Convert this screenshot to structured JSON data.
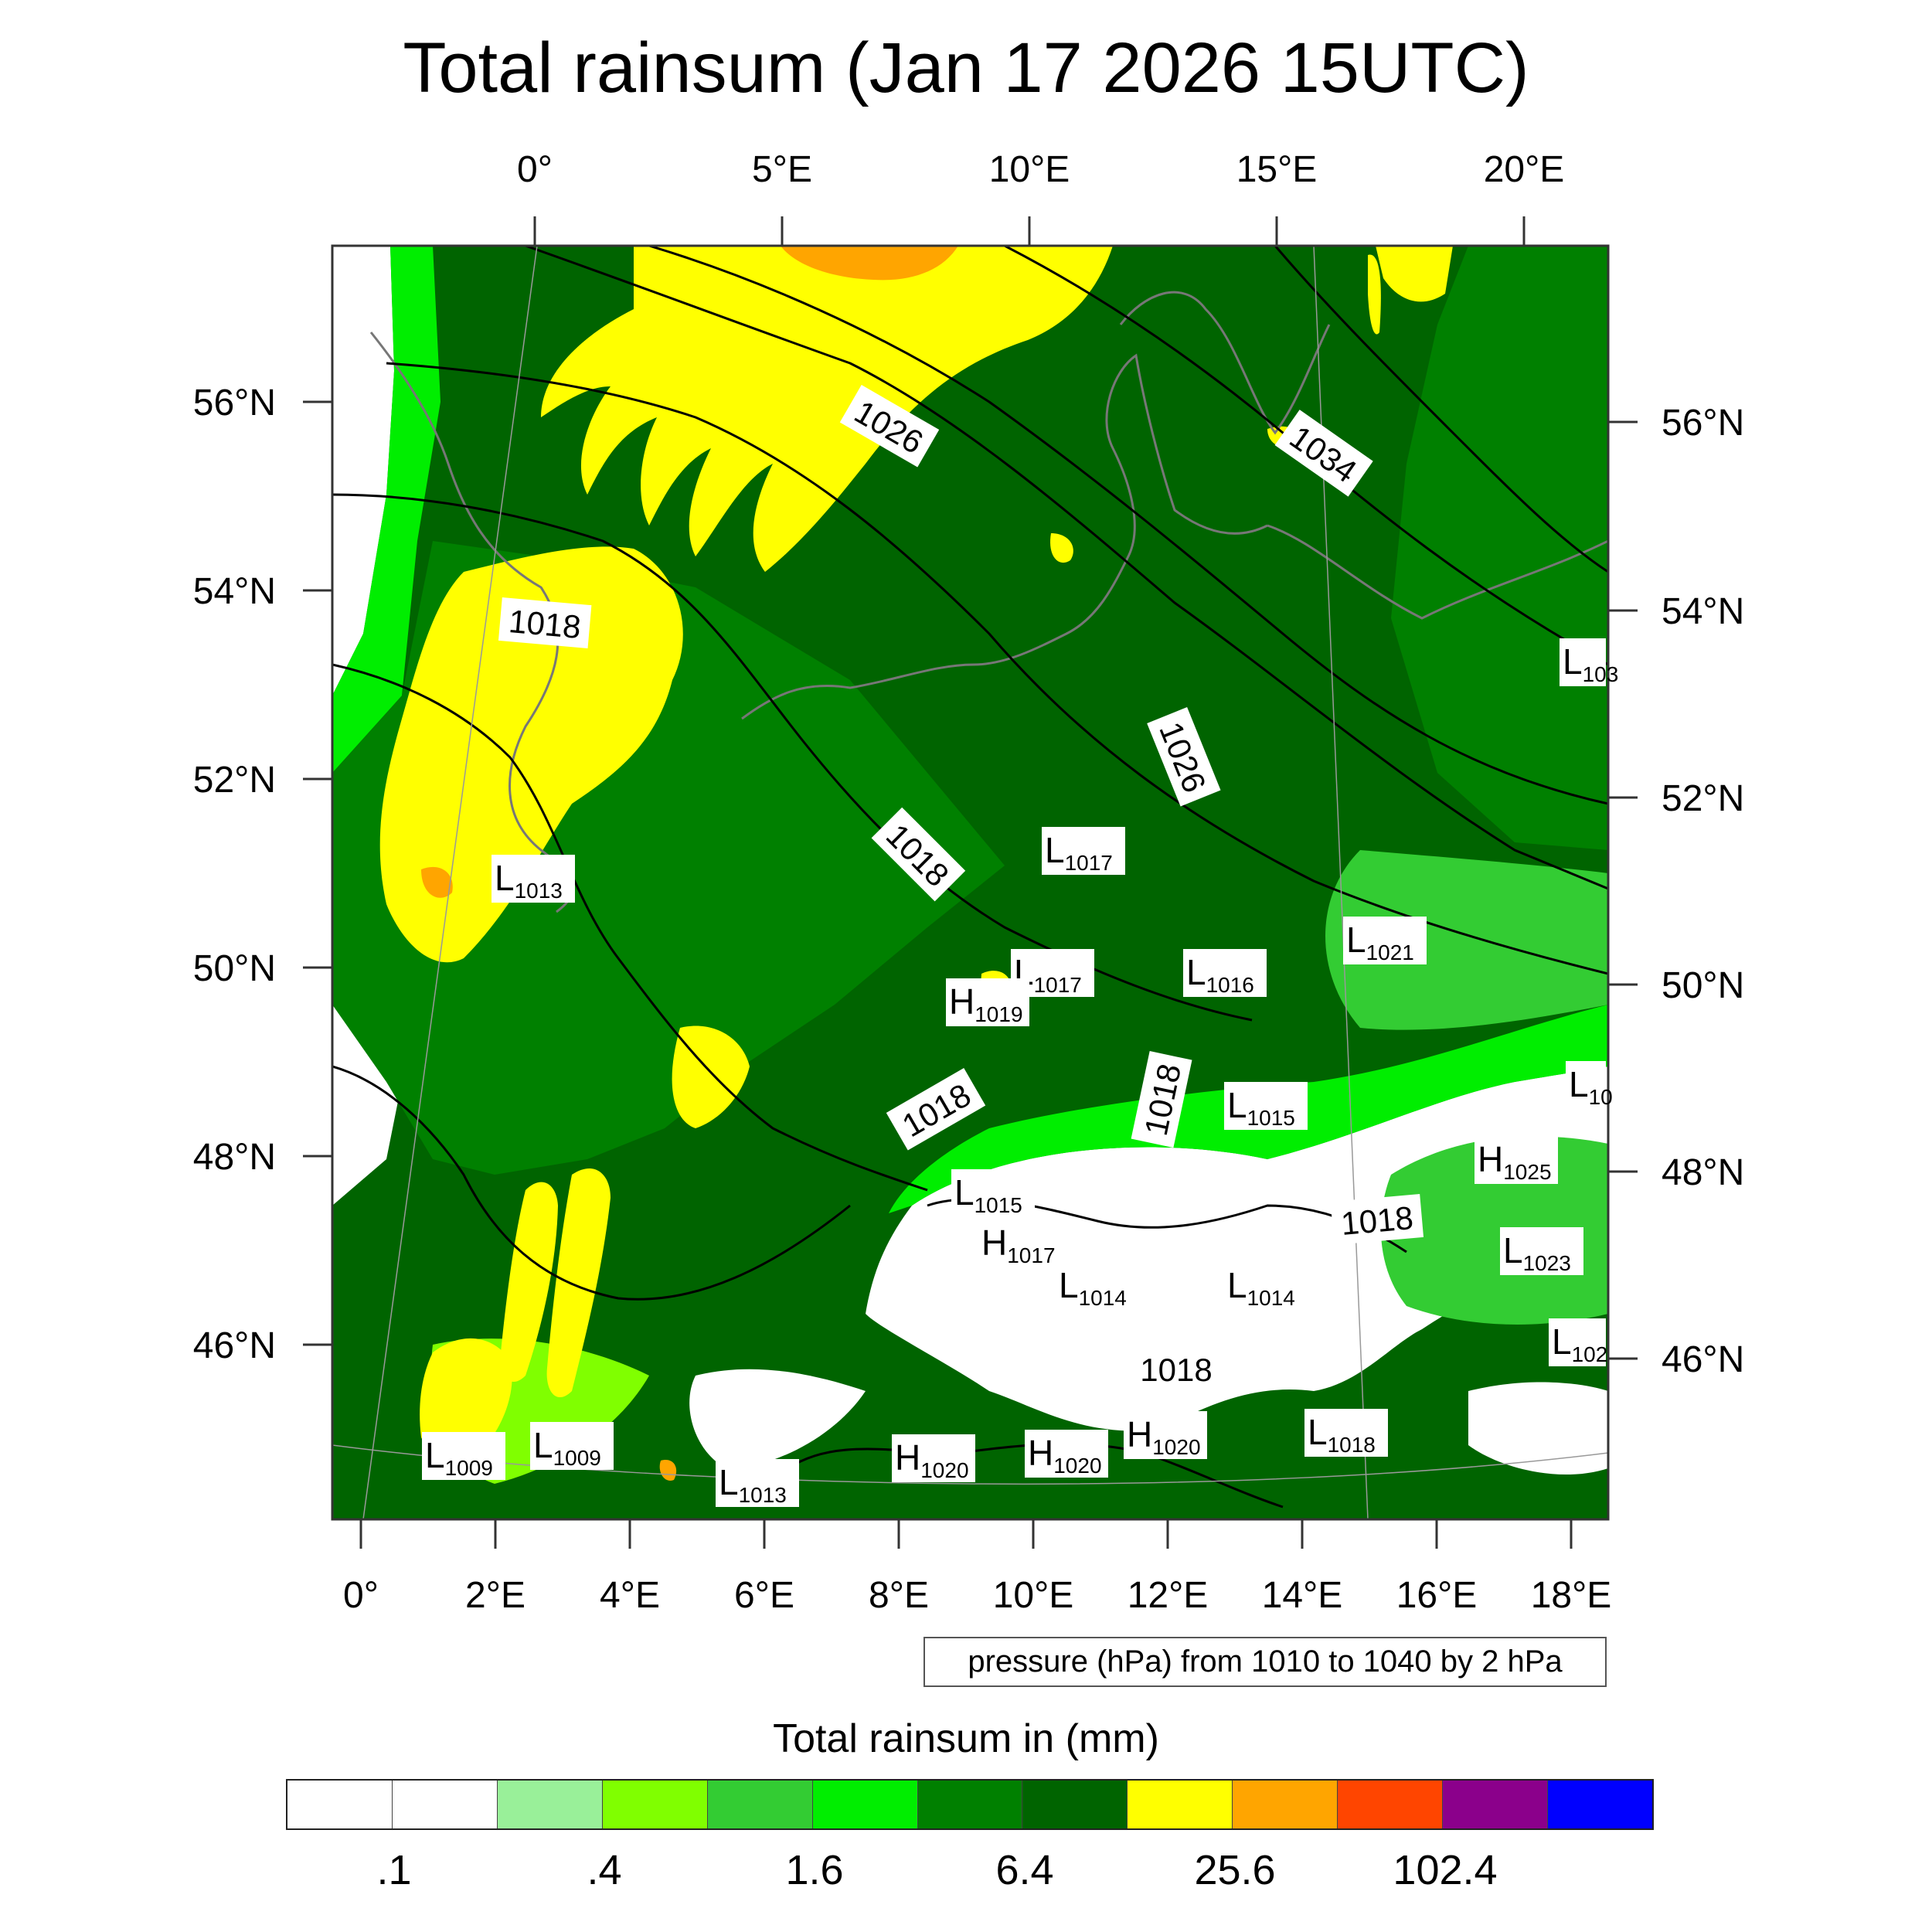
{
  "title": "Total rainsum (Jan 17 2026 15UTC)",
  "map": {
    "top_lon_labels": [
      "0°",
      "5°E",
      "10°E",
      "15°E",
      "20°E"
    ],
    "bottom_lon_labels": [
      "0°",
      "2°E",
      "4°E",
      "6°E",
      "8°E",
      "10°E",
      "12°E",
      "14°E",
      "16°E",
      "18°E"
    ],
    "left_lat_labels": [
      "56°N",
      "54°N",
      "52°N",
      "50°N",
      "48°N",
      "46°N"
    ],
    "right_lat_labels": [
      "56°N",
      "54°N",
      "52°N",
      "50°N",
      "48°N",
      "46°N"
    ],
    "isobar_labels": [
      "1026",
      "1034",
      "1018",
      "1026",
      "1018",
      "1018",
      "1018",
      "1018",
      "1018"
    ],
    "pressure_centers": [
      {
        "type": "L",
        "value": "1013"
      },
      {
        "type": "L",
        "value": "1017"
      },
      {
        "type": "L",
        "value": "1017"
      },
      {
        "type": "H",
        "value": "1019"
      },
      {
        "type": "L",
        "value": "1016"
      },
      {
        "type": "L",
        "value": "1021"
      },
      {
        "type": "L",
        "value": "103"
      },
      {
        "type": "L",
        "value": "10"
      },
      {
        "type": "L",
        "value": "1015"
      },
      {
        "type": "H",
        "value": "1025"
      },
      {
        "type": "L",
        "value": "1015"
      },
      {
        "type": "H",
        "value": "1017"
      },
      {
        "type": "L",
        "value": "1014"
      },
      {
        "type": "L",
        "value": "1014"
      },
      {
        "type": "L",
        "value": "1023"
      },
      {
        "type": "L",
        "value": "102"
      },
      {
        "type": "L",
        "value": "1009"
      },
      {
        "type": "L",
        "value": "1009"
      },
      {
        "type": "L",
        "value": "1013"
      },
      {
        "type": "H",
        "value": "1020"
      },
      {
        "type": "H",
        "value": "1020"
      },
      {
        "type": "H",
        "value": "1020"
      },
      {
        "type": "L",
        "value": "1018"
      }
    ]
  },
  "contour_note": "pressure (hPa) from 1010 to 1040 by 2 hPa",
  "colorbar": {
    "title": "Total rainsum in (mm)",
    "colors": [
      "#ffffff",
      "#ffffff",
      "#99f099",
      "#80ff00",
      "#33cc33",
      "#00ee00",
      "#008000",
      "#006400",
      "#ffff00",
      "#ffa500",
      "#ff4500",
      "#8b008b",
      "#0000ff"
    ],
    "labels": [
      ".1",
      ".4",
      "1.6",
      "6.4",
      "25.6",
      "102.4"
    ]
  }
}
